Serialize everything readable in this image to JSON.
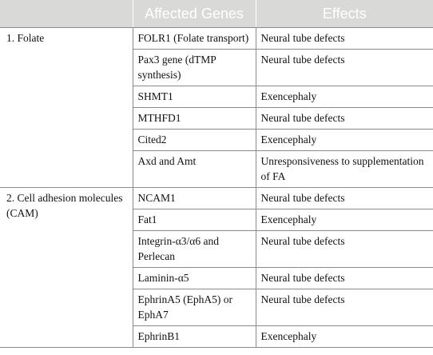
{
  "headers": [
    "",
    "Affected Genes",
    "Effects"
  ],
  "groups": [
    {
      "label": "1. Folate",
      "rows": [
        {
          "gene": "FOLR1 (Folate transport)",
          "effect": "Neural tube defects"
        },
        {
          "gene": "Pax3 gene (dTMP synthesis)",
          "effect": "Neural tube defects"
        },
        {
          "gene": "SHMT1",
          "effect": "Exencephaly"
        },
        {
          "gene": "MTHFD1",
          "effect": "Neural tube defects"
        },
        {
          "gene": "Cited2",
          "effect": "Exencephaly"
        },
        {
          "gene": "Axd and Amt",
          "effect": "Unresponsiveness to supplementation of FA"
        }
      ]
    },
    {
      "label": "2. Cell adhesion molecules (CAM)",
      "rows": [
        {
          "gene": "NCAM1",
          "effect": "Neural tube defects"
        },
        {
          "gene": "Fat1",
          "effect": "Exencephaly"
        },
        {
          "gene": "Integrin-α3/α6 and Perlecan",
          "effect": "Neural tube defects"
        },
        {
          "gene": "Laminin-α5",
          "effect": "Neural tube defects"
        },
        {
          "gene": "EphrinA5 (EphA5) or EphA7",
          "effect": "Neural tube defects"
        },
        {
          "gene": "EphrinB1",
          "effect": "Exencephaly"
        }
      ]
    }
  ]
}
